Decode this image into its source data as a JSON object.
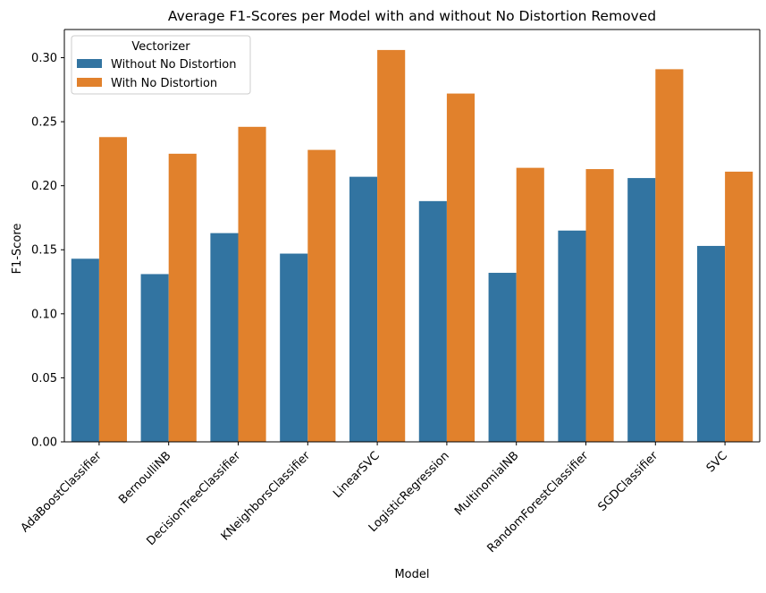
{
  "chart_data": {
    "type": "bar",
    "title": "Average F1-Scores per Model with and without No Distortion Removed",
    "xlabel": "Model",
    "ylabel": "F1-Score",
    "ylim": [
      0,
      0.322
    ],
    "yticks": [
      "0.00",
      "0.05",
      "0.10",
      "0.15",
      "0.20",
      "0.25",
      "0.30"
    ],
    "ytick_values": [
      0,
      0.05,
      0.1,
      0.15,
      0.2,
      0.25,
      0.3
    ],
    "grid": false,
    "legend": {
      "title": "Vectorizer",
      "placement": "top-left"
    },
    "categories": [
      "AdaBoostClassifier",
      "BernoulliNB",
      "DecisionTreeClassifier",
      "KNeighborsClassifier",
      "LinearSVC",
      "LogisticRegression",
      "MultinomialNB",
      "RandomForestClassifier",
      "SGDClassifier",
      "SVC"
    ],
    "series": [
      {
        "name": "Without No Distortion",
        "color": "#3274a1",
        "values": [
          0.143,
          0.131,
          0.163,
          0.147,
          0.207,
          0.188,
          0.132,
          0.165,
          0.206,
          0.153
        ]
      },
      {
        "name": "With No Distortion",
        "color": "#e1812c",
        "values": [
          0.238,
          0.225,
          0.246,
          0.228,
          0.306,
          0.272,
          0.214,
          0.213,
          0.291,
          0.211
        ]
      }
    ]
  }
}
